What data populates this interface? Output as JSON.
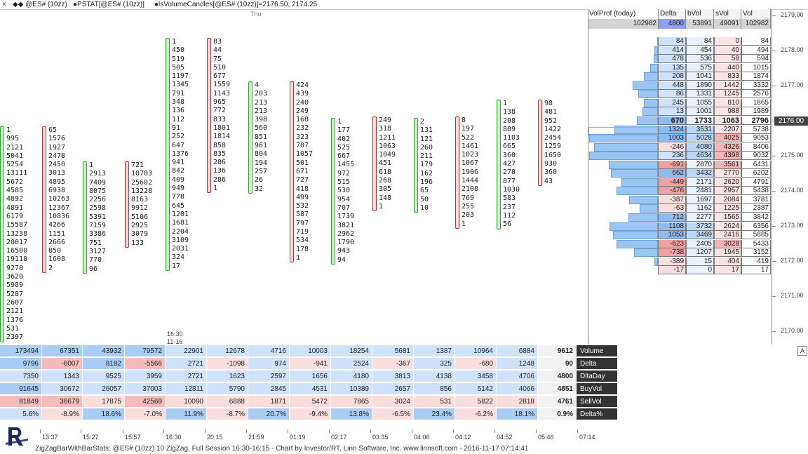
{
  "topbar": {
    "close": "×",
    "item1": "◆◆ @ES# (10zz)",
    "item2": "●PSTAT[@ES# (10zz)]",
    "item3": "●lsVolumeCandles[@ES# (10zz)]=2176.50, 2174.25"
  },
  "day_label": "Thu",
  "bars": [
    {
      "dir": "up",
      "values": [
        "1",
        "995",
        "2121",
        "5041",
        "5254",
        "13111",
        "5672",
        "4585",
        "4892",
        "4891",
        "6179",
        "15587",
        "13238",
        "20017",
        "16500",
        "19118",
        "9270",
        "3620",
        "5989",
        "5287",
        "2607",
        "2121",
        "1376",
        "531",
        "2397"
      ]
    },
    {
      "dir": "dn",
      "values": [
        "65",
        "1576",
        "1927",
        "2478",
        "2450",
        "3013",
        "4895",
        "6938",
        "10263",
        "12367",
        "10836",
        "4266",
        "1151",
        "2666",
        "850",
        "1608",
        "2"
      ]
    },
    {
      "dir": "up",
      "values": [
        "1",
        "2913",
        "7409",
        "8075",
        "2256",
        "2598",
        "5391",
        "7159",
        "3386",
        "751",
        "3127",
        "770",
        "96"
      ]
    },
    {
      "dir": "dn",
      "values": [
        "721",
        "10703",
        "25602",
        "13228",
        "8163",
        "9912",
        "5106",
        "2925",
        "3079",
        "133"
      ]
    },
    {
      "dir": "up",
      "values": [
        "1",
        "450",
        "519",
        "505",
        "1197",
        "1345",
        "791",
        "348",
        "136",
        "112",
        "91",
        "252",
        "647",
        "1376",
        "941",
        "842",
        "409",
        "949",
        "778",
        "645",
        "1201",
        "1681",
        "2204",
        "3109",
        "2031",
        "324",
        "17"
      ]
    },
    {
      "dir": "dn",
      "values": [
        "83",
        "44",
        "75",
        "510",
        "677",
        "1559",
        "1143",
        "965",
        "772",
        "833",
        "1801",
        "1814",
        "858",
        "835",
        "286",
        "136",
        "286",
        "1"
      ]
    },
    {
      "dir": "up",
      "values": [
        "4",
        "203",
        "213",
        "213",
        "398",
        "560",
        "851",
        "961",
        "804",
        "194",
        "257",
        "26",
        "32"
      ]
    },
    {
      "dir": "dn",
      "values": [
        "424",
        "439",
        "240",
        "249",
        "168",
        "232",
        "323",
        "707",
        "1057",
        "501",
        "671",
        "727",
        "418",
        "499",
        "532",
        "587",
        "797",
        "719",
        "534",
        "178",
        "1"
      ]
    },
    {
      "dir": "up",
      "values": [
        "1",
        "177",
        "402",
        "525",
        "667",
        "1455",
        "972",
        "515",
        "530",
        "954",
        "707",
        "1739",
        "3821",
        "2962",
        "1790",
        "943",
        "94"
      ]
    },
    {
      "dir": "dn",
      "values": [
        "249",
        "318",
        "1211",
        "1063",
        "1049",
        "451",
        "618",
        "268",
        "305",
        "148",
        "1"
      ]
    },
    {
      "dir": "up",
      "values": [
        "2",
        "131",
        "121",
        "260",
        "211",
        "179",
        "162",
        "196",
        "65",
        "50",
        "10"
      ]
    },
    {
      "dir": "dn",
      "values": [
        "8",
        "197",
        "522",
        "1461",
        "1023",
        "1067",
        "1906",
        "1444",
        "2108",
        "769",
        "255",
        "203",
        "1"
      ]
    },
    {
      "dir": "up",
      "values": [
        "1",
        "138",
        "208",
        "809",
        "1103",
        "665",
        "360",
        "427",
        "278",
        "877",
        "1030",
        "583",
        "237",
        "112",
        "56"
      ]
    },
    {
      "dir": "dn",
      "values": [
        "98",
        "481",
        "952",
        "1422",
        "2454",
        "1259",
        "1650",
        "930",
        "360",
        "43"
      ]
    }
  ],
  "stamp_time": "16:30",
  "stamp_date": "11-16",
  "stats": {
    "labels": [
      "Volume",
      "Delta",
      "DltaDay",
      "BuyVol",
      "SellVol",
      "Delta%"
    ],
    "rows": [
      [
        "173494",
        "67351",
        "43932",
        "79572",
        "22901",
        "12678",
        "4716",
        "10003",
        "18254",
        "5681",
        "1387",
        "10964",
        "6884",
        "9612"
      ],
      [
        "9796",
        "-6007",
        "8182",
        "-5566",
        "2721",
        "-1098",
        "974",
        "-941",
        "2524",
        "-367",
        "325",
        "-680",
        "1248",
        "90"
      ],
      [
        "7350",
        "1343",
        "9525",
        "3959",
        "2721",
        "1623",
        "2597",
        "1656",
        "4180",
        "3813",
        "4138",
        "3458",
        "4706",
        "4800"
      ],
      [
        "91645",
        "30672",
        "26057",
        "37003",
        "12811",
        "5790",
        "2845",
        "4531",
        "10389",
        "2657",
        "856",
        "5142",
        "4066",
        "4851"
      ],
      [
        "81849",
        "36679",
        "17875",
        "42569",
        "10090",
        "6888",
        "1871",
        "5472",
        "7865",
        "3024",
        "531",
        "5822",
        "2818",
        "4761"
      ],
      [
        "5.6%",
        "-8.9%",
        "18.6%",
        "-7.0%",
        "11.9%",
        "-8.7%",
        "20.7%",
        "-9.4%",
        "13.8%",
        "-6.5%",
        "23.4%",
        "-6.2%",
        "18.1%",
        "0.9%"
      ]
    ]
  },
  "time_ticks": [
    "13:37",
    "15:27",
    "15:57",
    "16:30",
    "20:15",
    "21:59",
    "01:19",
    "02:17",
    "03:35",
    "04:06",
    "04:12",
    "04:52",
    "05:46",
    "07:14"
  ],
  "footer": "ZigZagBarWithBarStats: @ES# (10zz) 10 ZigZag, Full Session 16:30-16:15 - Chart by Investor/RT, Linn Software, Inc. www.linnsoft.com - 2016-11-17 07:14:41",
  "volprof": {
    "headers": [
      "VolProf (today)",
      "Delta",
      "bVol",
      "sVol",
      "Vol"
    ],
    "totals": [
      "102982",
      "4800",
      "53891",
      "49091",
      "102982"
    ],
    "rows": [
      [
        "84",
        "84",
        "0",
        "84"
      ],
      [
        "414",
        "454",
        "40",
        "494"
      ],
      [
        "478",
        "536",
        "58",
        "594"
      ],
      [
        "135",
        "575",
        "440",
        "1015"
      ],
      [
        "208",
        "1041",
        "833",
        "1874"
      ],
      [
        "448",
        "1890",
        "1442",
        "3332"
      ],
      [
        "86",
        "1331",
        "1245",
        "2576"
      ],
      [
        "245",
        "1055",
        "810",
        "1865"
      ],
      [
        "13",
        "1001",
        "988",
        "1989"
      ],
      [
        "670",
        "1733",
        "1063",
        "2796"
      ],
      [
        "1324",
        "3531",
        "2207",
        "5738"
      ],
      [
        "1003",
        "5028",
        "4025",
        "9053"
      ],
      [
        "-246",
        "4080",
        "4326",
        "8406"
      ],
      [
        "236",
        "4634",
        "4398",
        "9032"
      ],
      [
        "-691",
        "2870",
        "3561",
        "6431"
      ],
      [
        "662",
        "3432",
        "2770",
        "6202"
      ],
      [
        "-449",
        "2171",
        "2620",
        "4791"
      ],
      [
        "-476",
        "2481",
        "2957",
        "5438"
      ],
      [
        "-387",
        "1697",
        "2084",
        "3781"
      ],
      [
        "-63",
        "1162",
        "1225",
        "2387"
      ],
      [
        "712",
        "2277",
        "1565",
        "3842"
      ],
      [
        "1108",
        "3732",
        "2624",
        "6356"
      ],
      [
        "1053",
        "3469",
        "2416",
        "5885"
      ],
      [
        "-623",
        "2405",
        "3028",
        "5433"
      ],
      [
        "-738",
        "1207",
        "1945",
        "3152"
      ],
      [
        "-389",
        "15",
        "404",
        "419"
      ],
      [
        "-17",
        "0",
        "17",
        "17"
      ]
    ]
  },
  "price_axis": [
    "2179.00",
    "2178.00",
    "2177.00",
    "2176.00",
    "2175.00",
    "2174.00",
    "2173.00",
    "2172.00",
    "2171.00",
    "2170.00"
  ],
  "current_price": "2176.00",
  "corner_button": "A"
}
